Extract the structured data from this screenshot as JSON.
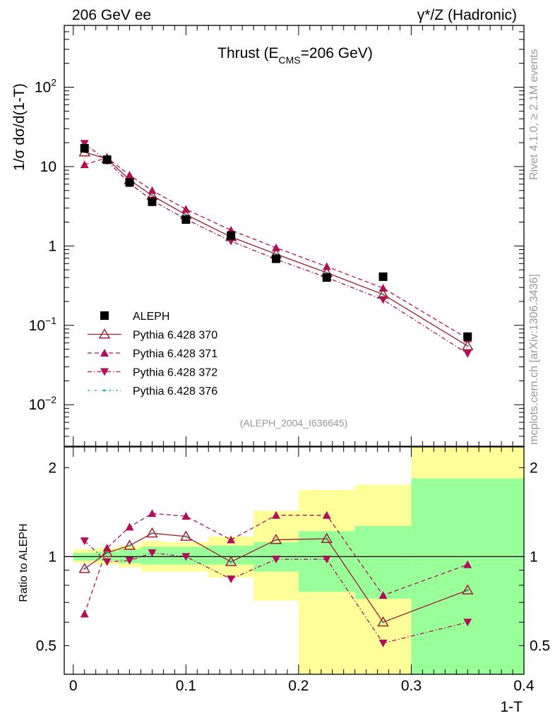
{
  "header": {
    "left": "206 GeV ee",
    "right": "γ*/Z (Hadronic)"
  },
  "side_labels": {
    "rivet": "Rivet 4.1.0, ≥ 2.1M events",
    "mcplots": "mcplots.cern.ch [arXiv:1306.3436]"
  },
  "analysis_id": "(ALEPH_2004_I636645)",
  "colors": {
    "data": "#000000",
    "pythia370": "#a02030",
    "pythia371": "#b0105a",
    "pythia372": "#b0105a",
    "pythia376": "#20a0a0",
    "band_green": "#99ff99",
    "band_yellow": "#ffff99"
  },
  "chart_data": [
    {
      "type": "line",
      "title": "Thrust (E_CMS=206 GeV)",
      "title_parts": {
        "pre": "Thrust (E",
        "sub": "CMS",
        "post": "=206 GeV)"
      },
      "ylabel": "1/σ  dσ/d(1-T)",
      "yscale": "log",
      "ylim": [
        0.003,
        600
      ],
      "xlim": [
        -0.008,
        0.4
      ],
      "ytick_labels": [
        {
          "value": 0.01,
          "base": "10",
          "exp": "−2"
        },
        {
          "value": 0.1,
          "base": "10",
          "exp": "−1"
        },
        {
          "value": 1,
          "text": "1"
        },
        {
          "value": 10,
          "text": "10"
        },
        {
          "value": 100,
          "base": "10",
          "exp": "2"
        }
      ],
      "x": [
        0.01,
        0.03,
        0.05,
        0.07,
        0.1,
        0.14,
        0.18,
        0.225,
        0.275,
        0.35
      ],
      "bin_edges": [
        0.0,
        0.02,
        0.04,
        0.06,
        0.08,
        0.12,
        0.16,
        0.2,
        0.25,
        0.3,
        0.4
      ],
      "series": [
        {
          "name": "ALEPH",
          "style": "data",
          "values": [
            17.0,
            12.2,
            6.3,
            3.6,
            2.15,
            1.35,
            0.69,
            0.4,
            0.41,
            0.072
          ]
        },
        {
          "name": "Pythia 6.428 370",
          "style": "solid-open-triangle",
          "values": [
            15.2,
            12.5,
            6.8,
            4.3,
            2.48,
            1.3,
            0.79,
            0.46,
            0.245,
            0.055
          ]
        },
        {
          "name": "Pythia 6.428 371",
          "style": "dashed-filled-triangle",
          "values": [
            10.6,
            12.9,
            7.8,
            5.0,
            2.9,
            1.58,
            0.95,
            0.55,
            0.295,
            0.068
          ]
        },
        {
          "name": "Pythia 6.428 372",
          "style": "dashdot-filled-down-triangle",
          "values": [
            19.5,
            11.8,
            6.15,
            3.75,
            2.17,
            1.15,
            0.68,
            0.4,
            0.21,
            0.044
          ]
        },
        {
          "name": "Pythia 6.428 376",
          "style": "dotdash-teal",
          "values": [
            15.2,
            12.5,
            6.8,
            4.3,
            2.48,
            1.3,
            0.79,
            0.46,
            0.245,
            0.055
          ]
        }
      ],
      "legend_position": "bottom-left"
    },
    {
      "type": "line",
      "ylabel": "Ratio to ALEPH",
      "xlabel": "1-T",
      "yscale": "log",
      "ylim": [
        0.4,
        2.35
      ],
      "xlim": [
        -0.008,
        0.4
      ],
      "ytick_labels": [
        {
          "value": 0.5,
          "text": "0.5"
        },
        {
          "value": 1,
          "text": "1"
        },
        {
          "value": 2,
          "text": "2"
        }
      ],
      "xtick_labels": [
        {
          "value": 0,
          "text": "0"
        },
        {
          "value": 0.1,
          "text": "0.1"
        },
        {
          "value": 0.2,
          "text": "0.2"
        },
        {
          "value": 0.3,
          "text": "0.3"
        },
        {
          "value": 0.4,
          "text": "0.4"
        }
      ],
      "x": [
        0.01,
        0.03,
        0.05,
        0.07,
        0.1,
        0.14,
        0.18,
        0.225,
        0.275,
        0.35
      ],
      "bands": {
        "edges": [
          0.0,
          0.02,
          0.04,
          0.06,
          0.08,
          0.12,
          0.16,
          0.2,
          0.25,
          0.3,
          0.4
        ],
        "green_low": [
          0.97,
          0.97,
          0.95,
          0.94,
          0.94,
          0.94,
          0.89,
          0.76,
          0.72,
          0.37
        ],
        "green_high": [
          1.03,
          1.04,
          1.06,
          1.08,
          1.08,
          1.09,
          1.12,
          1.22,
          1.27,
          1.84
        ],
        "yellow_low": [
          0.95,
          0.94,
          0.92,
          0.89,
          0.89,
          0.85,
          0.71,
          0.37,
          0.37,
          0.37
        ],
        "yellow_high": [
          1.06,
          1.07,
          1.09,
          1.13,
          1.12,
          1.17,
          1.43,
          1.68,
          1.75,
          2.35
        ]
      },
      "reference_line": 1,
      "series": [
        {
          "name": "Pythia 6.428 370",
          "values": [
            0.91,
            1.03,
            1.09,
            1.2,
            1.17,
            0.96,
            1.14,
            1.15,
            0.6,
            0.77
          ]
        },
        {
          "name": "Pythia 6.428 371",
          "values": [
            0.64,
            1.07,
            1.26,
            1.4,
            1.37,
            1.14,
            1.38,
            1.38,
            0.74,
            0.94
          ]
        },
        {
          "name": "Pythia 6.428 372",
          "values": [
            1.13,
            0.96,
            0.97,
            1.03,
            1.0,
            0.84,
            0.98,
            0.98,
            0.51,
            0.6
          ]
        },
        {
          "name": "Pythia 6.428 376",
          "values": [
            0.91,
            1.03,
            1.09,
            1.2,
            1.17,
            0.96,
            1.14,
            1.15,
            0.6,
            0.77
          ]
        }
      ]
    }
  ]
}
